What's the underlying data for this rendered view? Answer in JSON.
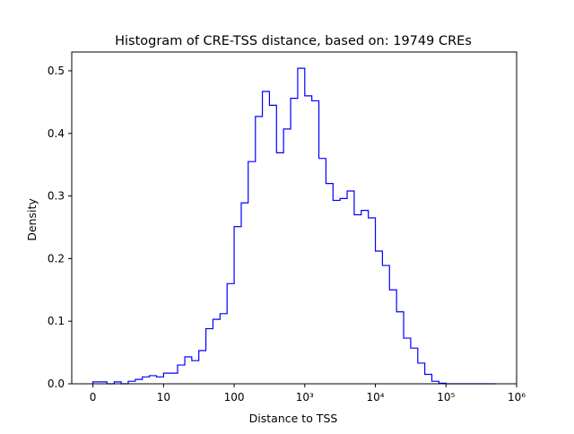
{
  "chart_data": {
    "type": "histogram",
    "title": "Histogram of CRE-TSS distance, based on: 19749 CREs",
    "xlabel": "Distance to TSS",
    "ylabel": "Density",
    "x_scale": "log10(distance + 1)",
    "xlim": [
      1,
      1000000
    ],
    "ylim": [
      0,
      0.53
    ],
    "x_ticks": [
      {
        "value": 1,
        "label": "0"
      },
      {
        "value": 10,
        "label": "10"
      },
      {
        "value": 100,
        "label": "100"
      },
      {
        "value": 1000,
        "label": "10³"
      },
      {
        "value": 10000,
        "label": "10⁴"
      },
      {
        "value": 100000,
        "label": "10⁵"
      },
      {
        "value": 1000000,
        "label": "10⁶"
      }
    ],
    "y_ticks": [
      {
        "value": 0.0,
        "label": "0.0"
      },
      {
        "value": 0.1,
        "label": "0.1"
      },
      {
        "value": 0.2,
        "label": "0.2"
      },
      {
        "value": 0.3,
        "label": "0.3"
      },
      {
        "value": 0.4,
        "label": "0.4"
      },
      {
        "value": 0.5,
        "label": "0.5"
      }
    ],
    "grid": false,
    "style": "step",
    "color": "#0000ff",
    "bin_edges": [
      1.0,
      1.26,
      1.58,
      2.0,
      2.51,
      3.16,
      3.98,
      5.01,
      6.31,
      7.94,
      10.0,
      12.6,
      15.8,
      20.0,
      25.1,
      31.6,
      39.8,
      50.1,
      63.1,
      79.4,
      100,
      126,
      158,
      200,
      251,
      316,
      398,
      501,
      631,
      794,
      1000,
      1259,
      1585,
      1995,
      2512,
      3162,
      3981,
      5012,
      6310,
      7943,
      10000,
      12589,
      15849,
      19953,
      25119,
      31623,
      39811,
      50119,
      63096,
      79433,
      100000,
      125893,
      158489,
      199526,
      251189,
      316228,
      398107,
      501187
    ],
    "values": [
      0.003,
      0.003,
      0.0,
      0.003,
      0.0,
      0.004,
      0.007,
      0.011,
      0.013,
      0.011,
      0.017,
      0.017,
      0.03,
      0.043,
      0.037,
      0.053,
      0.088,
      0.103,
      0.112,
      0.16,
      0.251,
      0.289,
      0.355,
      0.427,
      0.467,
      0.445,
      0.369,
      0.407,
      0.456,
      0.504,
      0.46,
      0.452,
      0.36,
      0.32,
      0.293,
      0.296,
      0.308,
      0.27,
      0.277,
      0.265,
      0.212,
      0.189,
      0.15,
      0.115,
      0.073,
      0.057,
      0.033,
      0.015,
      0.004,
      0.001,
      0.0,
      0.0,
      0.0,
      0.0,
      0.0,
      0.0,
      0.0
    ]
  }
}
